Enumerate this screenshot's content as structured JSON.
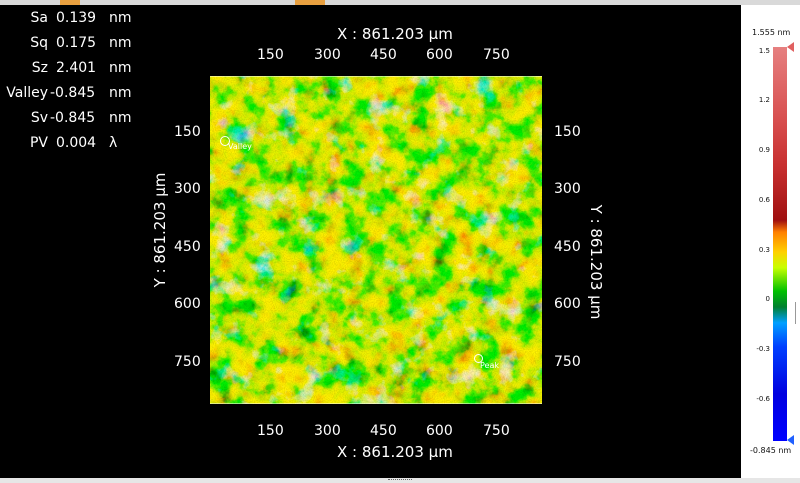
{
  "stats": [
    {
      "label": "Sa",
      "value": "0.139",
      "unit": "nm"
    },
    {
      "label": "Sq",
      "value": "0.175",
      "unit": "nm"
    },
    {
      "label": "Sz",
      "value": "2.401",
      "unit": "nm"
    },
    {
      "label": "Valley",
      "value": "-0.845",
      "unit": "nm"
    },
    {
      "label": "Sv",
      "value": "-0.845",
      "unit": "nm"
    },
    {
      "label": "PV",
      "value": "0.004",
      "unit": "λ"
    }
  ],
  "axes": {
    "x_title_top": "X : 861.203 µm",
    "x_title_bottom": "X : 861.203 µm",
    "y_title_left": "Y : 861.203 µm",
    "y_title_right": "Y : 861.203 µm",
    "x_ticks": [
      "150",
      "300",
      "450",
      "600",
      "750"
    ],
    "y_ticks": [
      "150",
      "300",
      "450",
      "600",
      "750"
    ]
  },
  "markers": {
    "valley": "Valley",
    "peak": "Peak"
  },
  "colorbar": {
    "top_label": "1.555 nm",
    "bottom_label": "-0.845 nm",
    "ticks": [
      "1.5",
      "1.2",
      "0.9",
      "0.6",
      "0.3",
      "0",
      "-0.3",
      "-0.6"
    ]
  },
  "colors": {
    "background": "#000000",
    "text": "#ffffff"
  }
}
